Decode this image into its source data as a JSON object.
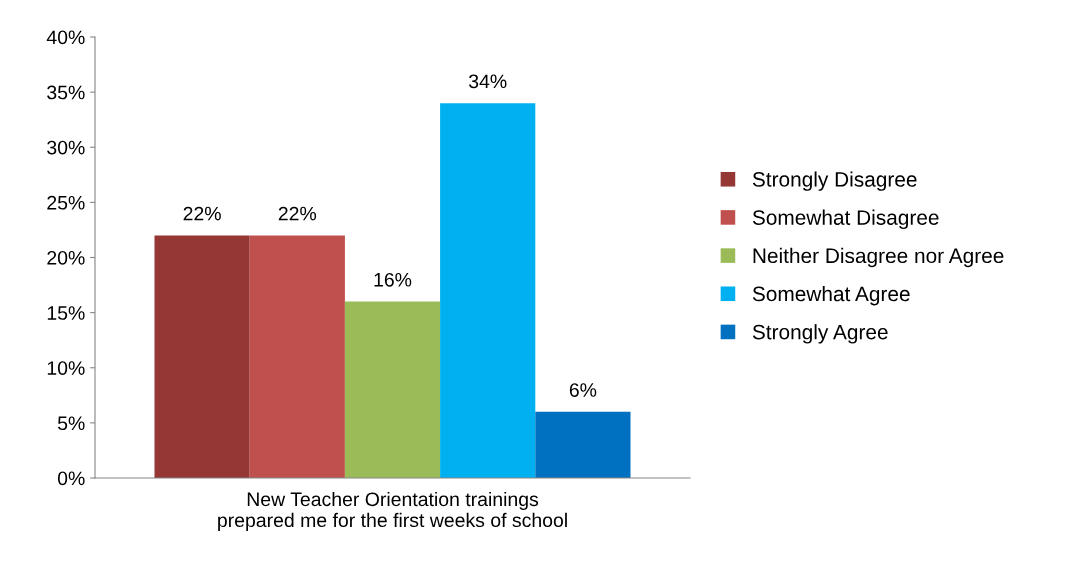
{
  "chart_data": {
    "type": "bar",
    "categories": [
      "New Teacher Orientation trainings prepared me for the first weeks of school"
    ],
    "series": [
      {
        "name": "Strongly Disagree",
        "color": "#953735",
        "values": [
          22
        ],
        "value_labels": [
          "22%"
        ]
      },
      {
        "name": "Somewhat Disagree",
        "color": "#c0504d",
        "values": [
          22
        ],
        "value_labels": [
          "22%"
        ]
      },
      {
        "name": "Neither Disagree nor Agree",
        "color": "#9bbb59",
        "values": [
          16
        ],
        "value_labels": [
          "16%"
        ]
      },
      {
        "name": "Somewhat Agree",
        "color": "#00b0f0",
        "values": [
          34
        ],
        "value_labels": [
          "34%"
        ]
      },
      {
        "name": "Strongly Agree",
        "color": "#0070c0",
        "values": [
          6
        ],
        "value_labels": [
          "6%"
        ]
      }
    ],
    "ylim": [
      0,
      40
    ],
    "yticks": [
      {
        "value": 0,
        "label": "0%"
      },
      {
        "value": 5,
        "label": "5%"
      },
      {
        "value": 10,
        "label": "10%"
      },
      {
        "value": 15,
        "label": "15%"
      },
      {
        "value": 20,
        "label": "20%"
      },
      {
        "value": 25,
        "label": "25%"
      },
      {
        "value": 30,
        "label": "30%"
      },
      {
        "value": 35,
        "label": "35%"
      },
      {
        "value": 40,
        "label": "40%"
      }
    ],
    "grid": false,
    "legend": "right"
  }
}
